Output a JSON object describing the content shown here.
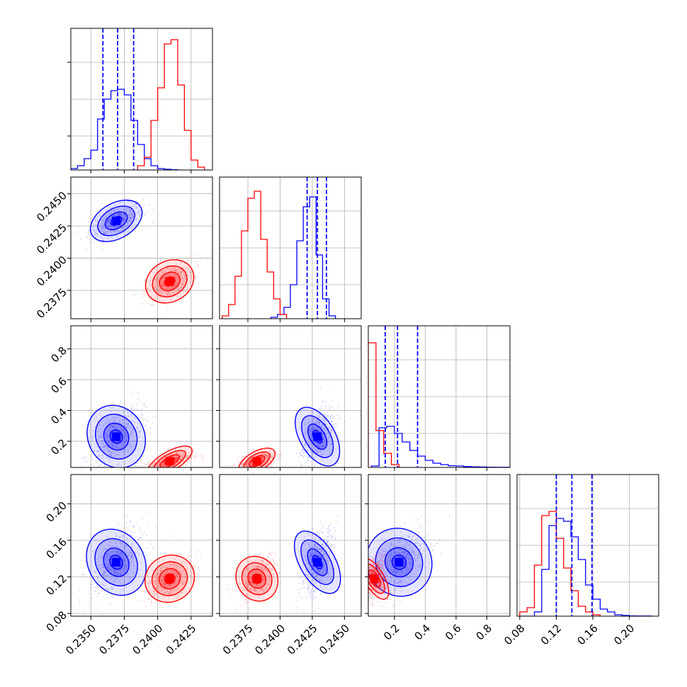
{
  "chart_data": {
    "type": "corner",
    "title": "",
    "grid": true,
    "colors": {
      "series_a": "#0000ff",
      "series_b": "#ff0000",
      "quantile_line": "#0000ff"
    },
    "parameters": [
      {
        "range": [
          0.2335,
          0.2441
        ]
      },
      {
        "range": [
          0.2353,
          0.2463
        ]
      },
      {
        "range": [
          0.03,
          0.95
        ]
      },
      {
        "range": [
          0.077,
          0.232
        ]
      }
    ],
    "ticks": [
      {
        "values": [
          0.235,
          0.2375,
          0.24,
          0.2425
        ],
        "labels": [
          "0.2350",
          "0.2375",
          "0.2400",
          "0.2425"
        ]
      },
      {
        "values": [
          0.2375,
          0.24,
          0.2425,
          0.245
        ],
        "labels": [
          "0.2375",
          "0.2400",
          "0.2425",
          "0.2450"
        ]
      },
      {
        "values": [
          0.2,
          0.4,
          0.6,
          0.8
        ],
        "labels": [
          "0.2",
          "0.4",
          "0.6",
          "0.8"
        ]
      },
      {
        "values": [
          0.08,
          0.12,
          0.16,
          0.2
        ],
        "labels": [
          "0.08",
          "0.12",
          "0.16",
          "0.20"
        ]
      }
    ],
    "series": [
      {
        "color": "#0000ff",
        "mean": [
          0.2369,
          0.2429,
          0.23,
          0.136
        ],
        "sd": [
          0.001,
          0.00065,
          0.1,
          0.018
        ],
        "quantiles": [
          [
            0.2359,
            0.237,
            0.2382
          ],
          [
            0.2421,
            0.2429,
            0.2436
          ],
          [
            0.14,
            0.22,
            0.35
          ],
          [
            0.12,
            0.137,
            0.159
          ]
        ],
        "hist_1d": [
          {
            "x0": 0.2335,
            "dx": 0.0005,
            "h": [
              0.01,
              0.03,
              0.08,
              0.14,
              0.36,
              0.5,
              0.56,
              0.57,
              0.53,
              0.35,
              0.18,
              0.08,
              0.03,
              0.01,
              0.005,
              0.002
            ]
          },
          {
            "x0": 0.2393,
            "dx": 0.0005,
            "h": [
              0.01,
              0.03,
              0.08,
              0.24,
              0.55,
              0.79,
              0.86,
              0.45,
              0.14,
              0.02
            ]
          },
          {
            "x0": 0.05,
            "dx": 0.05,
            "h": [
              0.01,
              0.28,
              0.29,
              0.24,
              0.18,
              0.12,
              0.08,
              0.05,
              0.03,
              0.02,
              0.012,
              0.01,
              0.006,
              0.004,
              0.003,
              0.002,
              0.001,
              0.001
            ]
          },
          {
            "x0": 0.08,
            "dx": 0.008,
            "h": [
              0.0,
              0.0,
              0.03,
              0.33,
              0.64,
              0.69,
              0.67,
              0.56,
              0.4,
              0.22,
              0.12,
              0.05,
              0.03,
              0.01,
              0.005,
              0.002,
              0.001,
              0.001
            ]
          }
        ]
      },
      {
        "color": "#ff0000",
        "mean": [
          0.2409,
          0.2382,
          0.07,
          0.118
        ],
        "sd": [
          0.0009,
          0.00075,
          0.03,
          0.012
        ],
        "hist_1d": [
          {
            "x0": 0.2385,
            "dx": 0.0005,
            "h": [
              0.03,
              0.09,
              0.35,
              0.58,
              0.89,
              0.92,
              0.6,
              0.28,
              0.07,
              0.02
            ]
          },
          {
            "x0": 0.2355,
            "dx": 0.0005,
            "h": [
              0.02,
              0.1,
              0.3,
              0.62,
              0.85,
              0.9,
              0.56,
              0.33,
              0.14,
              0.03
            ]
          },
          {
            "x0": 0.03,
            "dx": 0.05,
            "h": [
              0.88,
              0.26,
              0.1,
              0.02
            ]
          },
          {
            "x0": 0.08,
            "dx": 0.008,
            "h": [
              0.03,
              0.06,
              0.36,
              0.71,
              0.74,
              0.55,
              0.34,
              0.18,
              0.07,
              0.03,
              0.01
            ]
          }
        ]
      }
    ]
  }
}
